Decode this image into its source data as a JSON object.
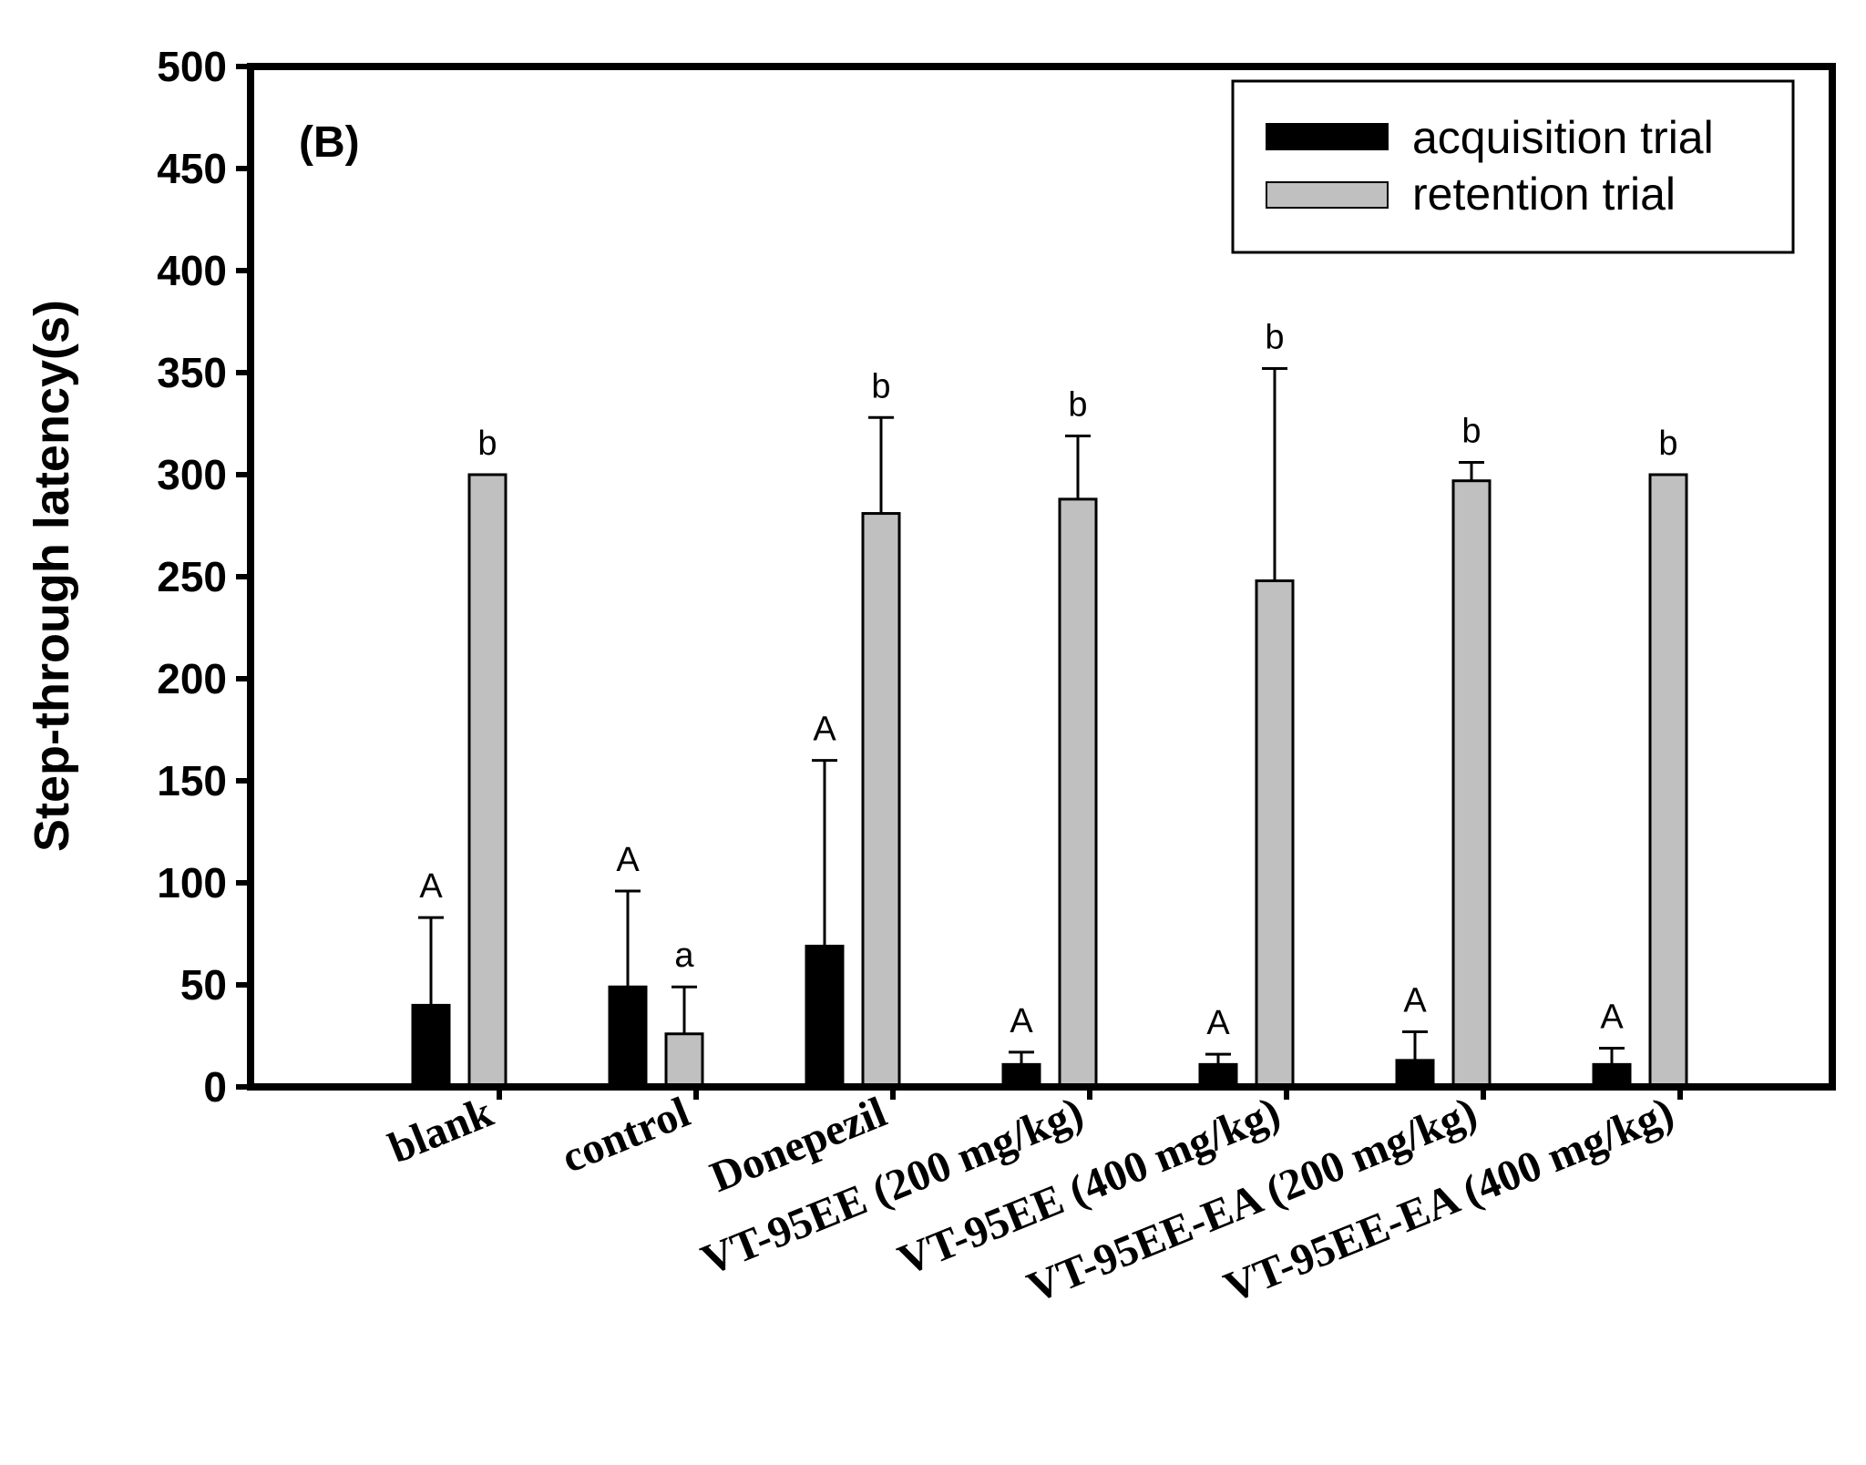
{
  "chart_data": {
    "type": "bar",
    "panel_label": "(B)",
    "title": "",
    "xlabel": "",
    "ylabel": "Step-through latency(s)",
    "ylim": [
      0,
      500
    ],
    "yticks": [
      0,
      50,
      100,
      150,
      200,
      250,
      300,
      350,
      400,
      450,
      500
    ],
    "grid": false,
    "legend_position": "top-right",
    "categories": [
      "blank",
      "control",
      "Donepezil",
      "VT-95EE (200 mg/kg)",
      "VT-95EE (400 mg/kg)",
      "VT-95EE-EA (200 mg/kg)",
      "VT-95EE-EA (400 mg/kg)"
    ],
    "series": [
      {
        "name": "acquisition trial",
        "color": "#000000",
        "values": [
          40,
          49,
          69,
          11,
          11,
          13,
          11
        ],
        "errors": [
          43,
          47,
          91,
          6,
          5,
          14,
          8
        ],
        "significance": [
          "A",
          "A",
          "A",
          "A",
          "A",
          "A",
          "A"
        ]
      },
      {
        "name": "retention trial",
        "color": "#c0c0c0",
        "values": [
          300,
          26,
          281,
          288,
          248,
          297,
          300
        ],
        "errors": [
          0,
          23,
          47,
          31,
          104,
          9,
          0
        ],
        "significance": [
          "b",
          "a",
          "b",
          "b",
          "b",
          "b",
          "b"
        ]
      }
    ]
  }
}
